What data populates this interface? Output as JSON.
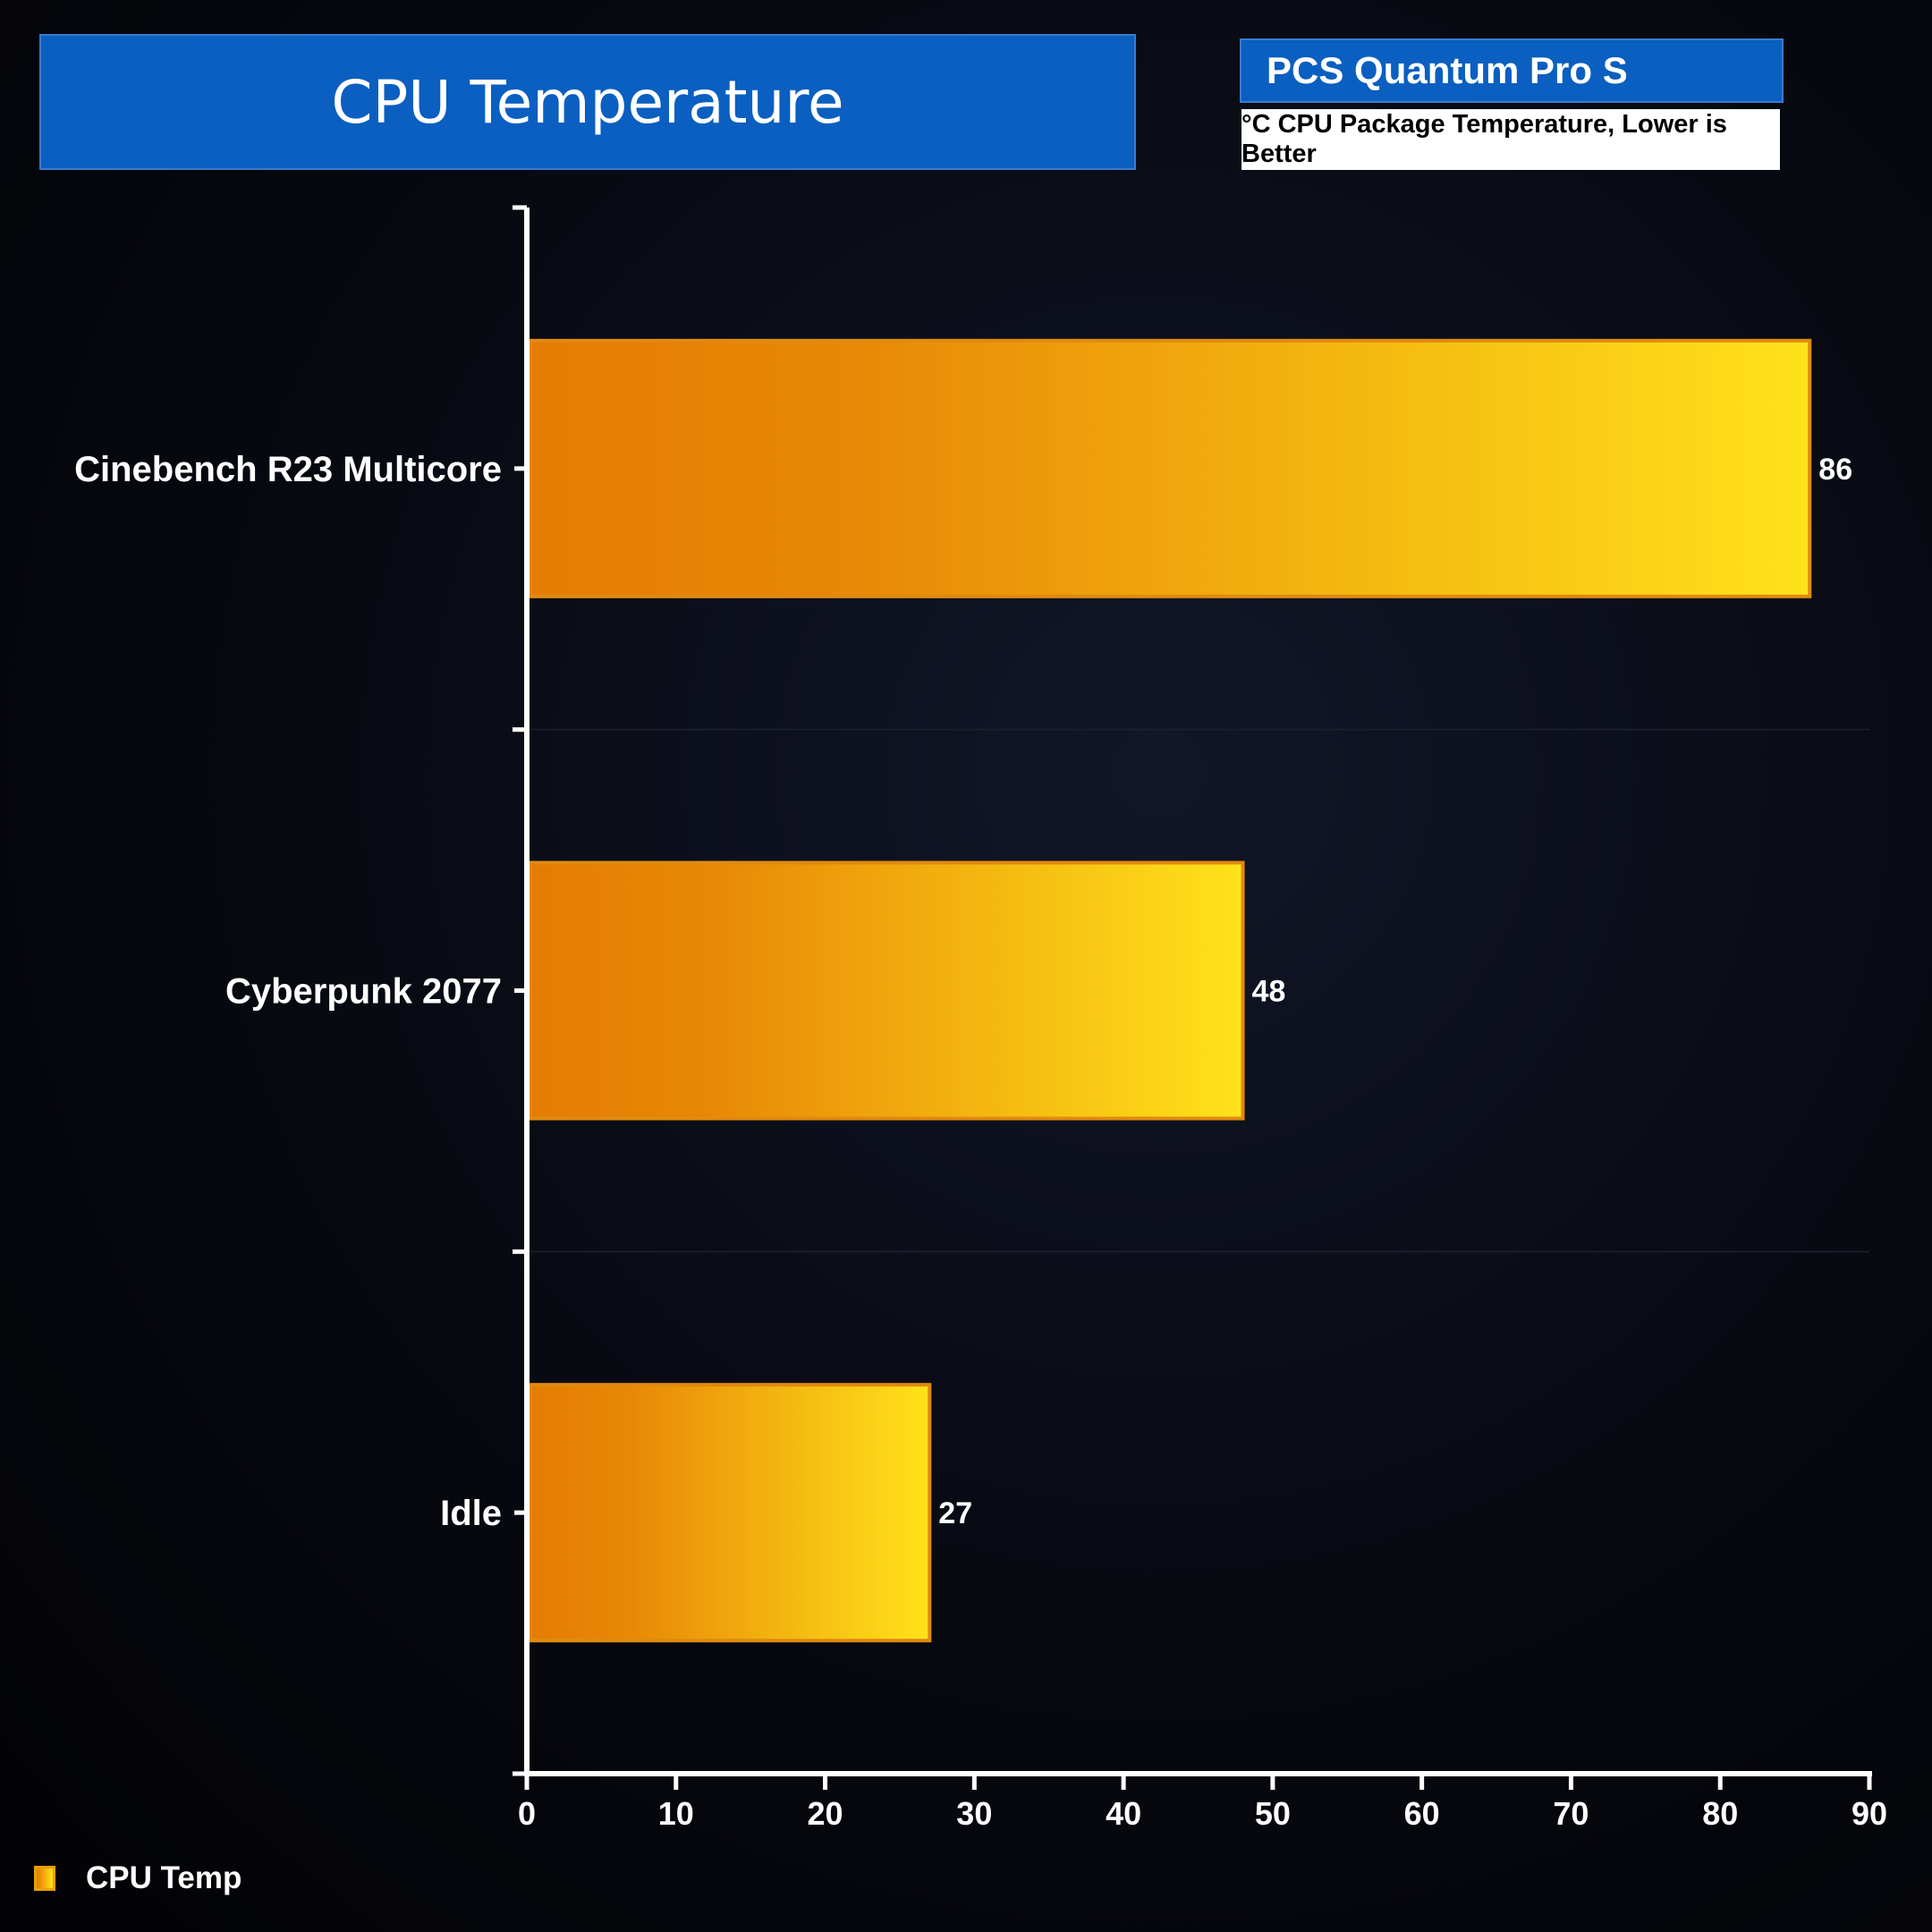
{
  "chart_data": {
    "type": "bar",
    "orientation": "horizontal",
    "title": "CPU Temperature",
    "product": "PCS Quantum Pro S",
    "subtitle": "°C CPU Package Temperature, Lower is Better",
    "categories": [
      "Cinebench R23 Multicore",
      "Cyberpunk 2077",
      "Idle"
    ],
    "series": [
      {
        "name": "CPU Temp",
        "values": [
          86,
          48,
          27
        ]
      }
    ],
    "xlim": [
      0,
      90
    ],
    "xticks": [
      0,
      10,
      20,
      30,
      40,
      50,
      60,
      70,
      80,
      90
    ],
    "legend": "bottom-left",
    "grid": false,
    "colors": {
      "bar_start": "#e57c04",
      "bar_end": "#ffe21a",
      "bar_border": "#e08a10",
      "header": "#0a5fc0"
    }
  }
}
